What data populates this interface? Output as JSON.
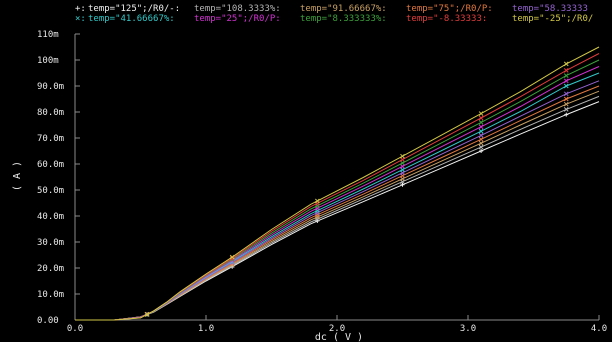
{
  "chart_data": {
    "type": "line",
    "xlabel": "dc ( V )",
    "ylabel": "( A )",
    "xlim": [
      0.0,
      4.0
    ],
    "ylim": [
      0.0,
      0.11
    ],
    "x_ticks": [
      {
        "value": 0.0,
        "label": "0.0"
      },
      {
        "value": 1.0,
        "label": "1.0"
      },
      {
        "value": 2.0,
        "label": "2.0"
      },
      {
        "value": 3.0,
        "label": "3.0"
      },
      {
        "value": 4.0,
        "label": "4.0"
      }
    ],
    "y_ticks": [
      {
        "value": 0.0,
        "label": "0.00"
      },
      {
        "value": 0.01,
        "label": "10.0m"
      },
      {
        "value": 0.02,
        "label": "20.0m"
      },
      {
        "value": 0.03,
        "label": "30.0m"
      },
      {
        "value": 0.04,
        "label": "40.0m"
      },
      {
        "value": 0.05,
        "label": "50.0m"
      },
      {
        "value": 0.06,
        "label": "60.0m"
      },
      {
        "value": 0.07,
        "label": "70.0m"
      },
      {
        "value": 0.08,
        "label": "80.0m"
      },
      {
        "value": 0.09,
        "label": "90.0m"
      },
      {
        "value": 0.1,
        "label": "100m"
      },
      {
        "value": 0.11,
        "label": "110m"
      }
    ],
    "grid": false,
    "legend_position": "top",
    "x": [
      0.0,
      0.3,
      0.5,
      0.6,
      0.7,
      0.8,
      1.0,
      1.2,
      1.5,
      1.8,
      2.2,
      2.5,
      2.8,
      3.1,
      3.4,
      3.75,
      4.0
    ],
    "marker_x": [
      0.55,
      1.2,
      1.85,
      2.5,
      3.1,
      3.75
    ],
    "series": [
      {
        "name": "temp=\"125\";/R0/-",
        "color": "#f0f0f0",
        "marker": "+",
        "values": [
          0,
          0,
          0.0012,
          0.003,
          0.006,
          0.009,
          0.015,
          0.0205,
          0.029,
          0.037,
          0.0455,
          0.052,
          0.0585,
          0.065,
          0.0715,
          0.079,
          0.084
        ]
      },
      {
        "name": "temp=\"108.3333%",
        "color": "#b4b4b4",
        "marker": "x",
        "values": [
          0,
          0,
          0.0012,
          0.0031,
          0.0061,
          0.0092,
          0.0153,
          0.0209,
          0.0296,
          0.0377,
          0.0465,
          0.0532,
          0.0599,
          0.0665,
          0.0733,
          0.081,
          0.086
        ]
      },
      {
        "name": "temp=\"91.66667%",
        "color": "#c8a064",
        "marker": "x",
        "values": [
          0,
          0,
          0.0012,
          0.0032,
          0.0062,
          0.0094,
          0.0156,
          0.0213,
          0.0302,
          0.0385,
          0.0474,
          0.0543,
          0.0612,
          0.068,
          0.075,
          0.083,
          0.088
        ]
      },
      {
        "name": "temp=\"75\";/R0/P",
        "color": "#e07840",
        "marker": "x",
        "values": [
          0,
          0,
          0.0011,
          0.0032,
          0.0063,
          0.0096,
          0.0159,
          0.0217,
          0.0308,
          0.0393,
          0.0484,
          0.0555,
          0.0625,
          0.0695,
          0.0767,
          0.085,
          0.09
        ]
      },
      {
        "name": "temp=\"58.33333",
        "color": "#9664d2",
        "marker": "x",
        "values": [
          0,
          0,
          0.0011,
          0.0033,
          0.0064,
          0.0098,
          0.0162,
          0.0221,
          0.0314,
          0.0401,
          0.0494,
          0.0566,
          0.0638,
          0.071,
          0.0784,
          0.087,
          0.092
        ]
      },
      {
        "name": "temp=\"41.66667%",
        "color": "#32c8c8",
        "marker": "x",
        "values": [
          0,
          0,
          0.001,
          0.0033,
          0.0065,
          0.01,
          0.0165,
          0.0225,
          0.032,
          0.0409,
          0.0504,
          0.0578,
          0.0652,
          0.0726,
          0.0802,
          0.09,
          0.095
        ]
      },
      {
        "name": "temp=\"25\";/R0/P",
        "color": "#d232d2",
        "marker": "x",
        "values": [
          0,
          0,
          0.001,
          0.0034,
          0.0066,
          0.0102,
          0.0168,
          0.0229,
          0.0327,
          0.0418,
          0.0515,
          0.0591,
          0.0667,
          0.0743,
          0.0821,
          0.092,
          0.0975
        ]
      },
      {
        "name": "temp=\"8.333333%",
        "color": "#3ca03c",
        "marker": "x",
        "values": [
          0,
          0,
          0.0009,
          0.0034,
          0.0067,
          0.0104,
          0.0171,
          0.0233,
          0.0334,
          0.0427,
          0.0526,
          0.0604,
          0.0682,
          0.076,
          0.084,
          0.094,
          0.1
        ]
      },
      {
        "name": "temp=\"-8.33333",
        "color": "#e03c3c",
        "marker": "x",
        "values": [
          0,
          0,
          0.0009,
          0.0035,
          0.0068,
          0.0106,
          0.0174,
          0.0237,
          0.0341,
          0.0436,
          0.0537,
          0.0617,
          0.0697,
          0.0777,
          0.0859,
          0.096,
          0.1025
        ]
      },
      {
        "name": "temp=\"-25\";/R0/",
        "color": "#d2c846",
        "marker": "x",
        "values": [
          0,
          0,
          0.0008,
          0.0035,
          0.0069,
          0.0108,
          0.0177,
          0.0242,
          0.0348,
          0.0445,
          0.0548,
          0.063,
          0.0712,
          0.0794,
          0.0878,
          0.0985,
          0.105
        ]
      }
    ]
  },
  "legend_rows": [
    [
      {
        "series": 0,
        "marker": "+:",
        "text": "temp=\"125\";/R0/-:"
      },
      {
        "series": 1,
        "marker": "",
        "text": "temp=\"108.3333%:"
      },
      {
        "series": 2,
        "marker": "",
        "text": "temp=\"91.66667%:"
      },
      {
        "series": 3,
        "marker": "",
        "text": "temp=\"75\";/R0/P:"
      },
      {
        "series": 4,
        "marker": "",
        "text": "temp=\"58.33333"
      }
    ],
    [
      {
        "series": 5,
        "marker": "×:",
        "text": "temp=\"41.66667%:"
      },
      {
        "series": 6,
        "marker": "",
        "text": "temp=\"25\";/R0/P:"
      },
      {
        "series": 7,
        "marker": "",
        "text": "temp=\"8.333333%:"
      },
      {
        "series": 8,
        "marker": "",
        "text": "temp=\"-8.33333:"
      },
      {
        "series": 9,
        "marker": "",
        "text": "temp=\"-25\";/R0/"
      }
    ]
  ]
}
